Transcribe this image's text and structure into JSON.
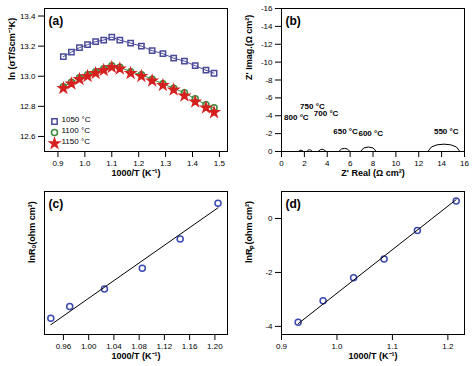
{
  "chart_data": [
    {
      "type": "line",
      "title": "(a)",
      "x_label": "1000/T (K⁻¹)",
      "y_label": "ln (σT/Scm⁻¹K)",
      "x": [
        0.92,
        0.95,
        0.98,
        1.01,
        1.04,
        1.07,
        1.1,
        1.13,
        1.17,
        1.21,
        1.25,
        1.29,
        1.33,
        1.37,
        1.41,
        1.45,
        1.48
      ],
      "series": [
        {
          "name": "1050 °C",
          "color": "#4a4a9a",
          "marker": "square",
          "line_style": "solid",
          "values": [
            13.13,
            13.16,
            13.19,
            13.21,
            13.23,
            13.24,
            13.26,
            13.24,
            13.22,
            13.2,
            13.17,
            13.15,
            13.12,
            13.1,
            13.07,
            13.04,
            13.02
          ]
        },
        {
          "name": "1100 °C",
          "color": "#3a8a3a",
          "marker": "circle",
          "line_style": "solid",
          "values": [
            12.93,
            12.96,
            12.99,
            13.01,
            13.03,
            13.05,
            13.07,
            13.06,
            13.03,
            13.01,
            12.98,
            12.95,
            12.92,
            12.89,
            12.85,
            12.81,
            12.79
          ]
        },
        {
          "name": "1150 °C",
          "color": "#d62020",
          "marker": "star",
          "values": [
            12.92,
            12.95,
            12.98,
            13.0,
            13.02,
            13.04,
            13.06,
            13.05,
            13.02,
            13.0,
            12.97,
            12.94,
            12.91,
            12.87,
            12.83,
            12.79,
            12.76
          ]
        }
      ],
      "xlim": [
        0.85,
        1.53
      ],
      "xticks": [
        0.9,
        {
          "value": 1,
          "label": "1.0"
        },
        1.1,
        1.2,
        1.3,
        1.4,
        1.5
      ],
      "ylim": [
        12.5,
        13.45
      ],
      "yticks": [
        12.6,
        12.8,
        {
          "value": 13,
          "label": "13.0"
        },
        13.2,
        13.4
      ],
      "legend": "bottom-left"
    },
    {
      "type": "line",
      "title": "(b)",
      "x_label": "Z' Real (Ω cm²)",
      "y_label": "Z' Imag.(Ω cm²)",
      "series": [
        {
          "color": "#000000",
          "line_style": "solid",
          "x": [
            1.5,
            1.6,
            1.7,
            1.8,
            1.9
          ],
          "values": [
            0,
            -0.12,
            -0.15,
            -0.12,
            0
          ]
        },
        {
          "color": "#000000",
          "line_style": "solid",
          "x": [
            2.2,
            2.35,
            2.45,
            2.55,
            2.7
          ],
          "values": [
            0,
            -0.16,
            -0.2,
            -0.16,
            0
          ]
        },
        {
          "color": "#000000",
          "line_style": "solid",
          "x": [
            3.2,
            3.4,
            3.55,
            3.7,
            3.9
          ],
          "values": [
            0,
            -0.2,
            -0.25,
            -0.2,
            0
          ]
        },
        {
          "color": "#000000",
          "line_style": "solid",
          "x": [
            5.0,
            5.25,
            5.5,
            5.75,
            6.0
          ],
          "values": [
            0,
            -0.28,
            -0.35,
            -0.28,
            0
          ]
        },
        {
          "color": "#000000",
          "line_style": "solid",
          "x": [
            6.9,
            7.2,
            7.6,
            8.0,
            8.3
          ],
          "values": [
            0,
            -0.4,
            -0.5,
            -0.4,
            0
          ]
        },
        {
          "color": "#000000",
          "line_style": "solid",
          "x": [
            12.8,
            13.1,
            13.6,
            14.2,
            14.8,
            15.3,
            15.6
          ],
          "values": [
            0,
            -0.5,
            -0.75,
            -0.82,
            -0.75,
            -0.5,
            0
          ]
        }
      ],
      "annotations": [
        {
          "text": "800 °C",
          "x": 1.3,
          "y": -3.8
        },
        {
          "text": "750 °C",
          "x": 2.7,
          "y": -5.0
        },
        {
          "text": "700 °C",
          "x": 3.9,
          "y": -4.3
        },
        {
          "text": "650 °C",
          "x": 5.6,
          "y": -2.3
        },
        {
          "text": "600 °C",
          "x": 7.8,
          "y": -2.0
        },
        {
          "text": "550 °C",
          "x": 14.4,
          "y": -2.3
        }
      ],
      "xlim": [
        0,
        16
      ],
      "xticks": [
        0,
        2,
        4,
        6,
        8,
        10,
        12,
        14,
        16
      ],
      "ylim": [
        0,
        -16
      ],
      "yticks": [
        -16,
        -14,
        -12,
        -10,
        -8,
        -6,
        -4,
        -2,
        0
      ]
    },
    {
      "type": "line",
      "title": "(c)",
      "x_label": "1000/T (K⁻¹)",
      "y_label": "lnRₒ(ohm cm²)",
      "series": [
        {
          "color": "#3a4ab0",
          "marker": "circle",
          "x": [
            0.94,
            0.97,
            1.025,
            1.085,
            1.145,
            1.205
          ],
          "values": [
            0.75,
            0.93,
            1.2,
            1.52,
            1.97,
            2.52
          ]
        },
        {
          "color": "#000000",
          "line_style": "solid",
          "x": [
            0.94,
            1.205
          ],
          "values": [
            0.65,
            2.45
          ]
        }
      ],
      "xlim": [
        0.93,
        1.22
      ],
      "xticks": [
        0.96,
        {
          "value": 1,
          "label": "1.00"
        },
        1.04,
        1.08,
        1.12,
        1.16,
        {
          "value": 1.2,
          "label": "1.20"
        }
      ],
      "ylim": [
        0.5,
        2.7
      ],
      "tick_labels": "x"
    },
    {
      "type": "line",
      "title": "(d)",
      "x_label": "1000/T (K⁻¹)",
      "y_label": "lnRₚ(ohm cm²)",
      "series": [
        {
          "color": "#3a4ab0",
          "marker": "circle",
          "x": [
            0.93,
            0.975,
            1.03,
            1.085,
            1.145,
            1.215
          ],
          "values": [
            -3.85,
            -3.05,
            -2.2,
            -1.5,
            -0.45,
            0.65
          ]
        },
        {
          "color": "#000000",
          "line_style": "solid",
          "x": [
            0.93,
            1.215
          ],
          "values": [
            -3.9,
            0.7
          ]
        }
      ],
      "xlim": [
        0.9,
        1.23
      ],
      "xticks": [
        0.9,
        {
          "value": 1,
          "label": "1.0"
        },
        1.1,
        1.2
      ],
      "ylim": [
        -4.3,
        1.0
      ],
      "yticks": [
        -4,
        -2,
        0
      ]
    }
  ]
}
